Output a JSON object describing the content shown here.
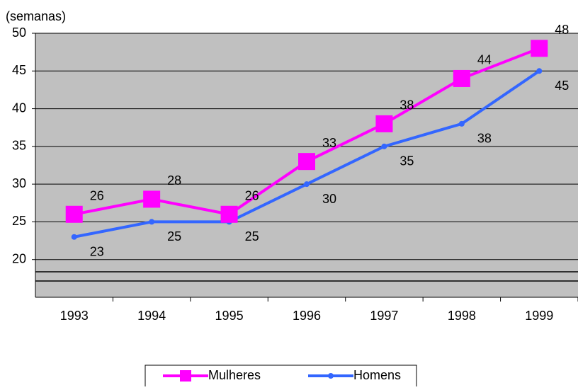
{
  "chart_data": {
    "type": "line",
    "y_label": "(semanas)",
    "categories": [
      "1993",
      "1994",
      "1995",
      "1996",
      "1997",
      "1998",
      "1999"
    ],
    "series": [
      {
        "name": "Mulheres",
        "color": "#ff00ff",
        "marker": "square",
        "values": [
          26,
          28,
          26,
          33,
          38,
          44,
          48
        ]
      },
      {
        "name": "Homens",
        "color": "#3366ff",
        "marker": "circle",
        "values": [
          23,
          25,
          25,
          30,
          35,
          38,
          45
        ]
      }
    ],
    "ylim": [
      15,
      50
    ],
    "yticks": [
      20,
      25,
      30,
      35,
      40,
      45,
      50
    ],
    "grid": true,
    "legend": "bottom"
  }
}
